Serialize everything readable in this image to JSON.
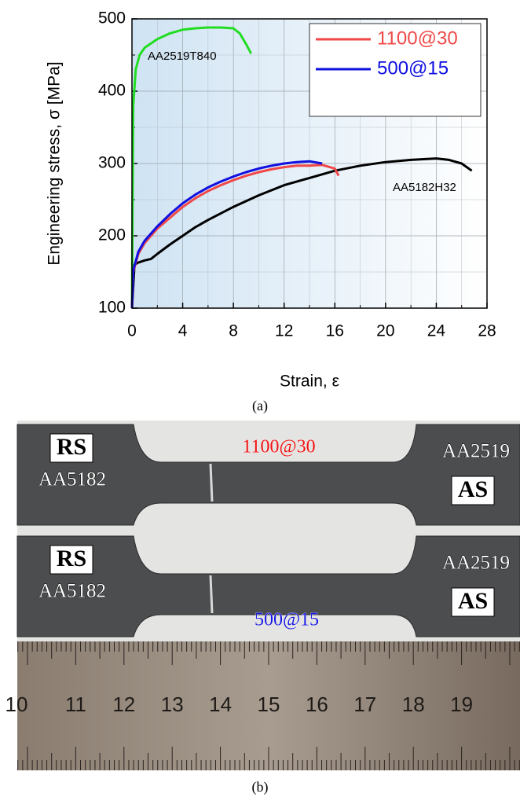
{
  "chart_data": {
    "type": "line",
    "xlabel": "Strain, ε",
    "ylabel": "Engineering stress, σ [MPa]",
    "xlim": [
      0,
      28
    ],
    "xticks": [
      0,
      4,
      8,
      12,
      16,
      20,
      24,
      28
    ],
    "ylim": [
      100,
      500
    ],
    "yticks": [
      100,
      200,
      300,
      400,
      500
    ],
    "grid": true,
    "legend": "upper right",
    "series": [
      {
        "name": "AA2519T840",
        "color": "#22dd22",
        "in_legend": false,
        "x": [
          0,
          0.1,
          0.3,
          0.6,
          1,
          2,
          3,
          4,
          5,
          6,
          7,
          8,
          8.5,
          9,
          9.4
        ],
        "values": [
          100,
          380,
          430,
          450,
          460,
          472,
          480,
          485,
          487,
          488,
          488,
          487,
          480,
          465,
          452
        ]
      },
      {
        "name": "AA5182H32",
        "color": "#000000",
        "in_legend": false,
        "x": [
          0,
          0.2,
          0.5,
          1,
          1.5,
          2,
          3,
          4,
          5,
          6,
          8,
          10,
          12,
          14,
          16,
          18,
          20,
          22,
          24,
          25,
          26,
          26.8
        ],
        "values": [
          100,
          160,
          163,
          166,
          168,
          175,
          188,
          200,
          212,
          222,
          240,
          256,
          270,
          280,
          290,
          297,
          302,
          305,
          307,
          305,
          300,
          290
        ]
      },
      {
        "name": "1100@30",
        "color": "#f04848",
        "in_legend": true,
        "x": [
          0,
          0.1,
          0.5,
          1,
          2,
          3,
          4,
          5,
          6,
          7,
          8,
          9,
          10,
          11,
          12,
          13,
          14,
          15,
          16,
          16.3
        ],
        "values": [
          100,
          150,
          175,
          190,
          210,
          225,
          240,
          252,
          262,
          270,
          277,
          283,
          288,
          292,
          295,
          297,
          297,
          298,
          293,
          283
        ]
      },
      {
        "name": "500@15",
        "color": "#1010e0",
        "in_legend": true,
        "x": [
          0,
          0.1,
          0.5,
          1,
          2,
          3,
          4,
          5,
          6,
          7,
          8,
          9,
          10,
          11,
          12,
          13,
          14,
          15
        ],
        "values": [
          100,
          152,
          178,
          193,
          213,
          230,
          245,
          257,
          267,
          275,
          282,
          288,
          293,
          297,
          300,
          302,
          303,
          300
        ]
      }
    ]
  },
  "captions": [
    "(a)",
    "(b)"
  ],
  "photo": {
    "specimens": [
      {
        "left_box": "RS",
        "left_label": "AA5182",
        "center_label": "1100@30",
        "right_label": "AA2519",
        "right_box": "AS"
      },
      {
        "left_box": "RS",
        "left_label": "AA5182",
        "center_label": "500@15",
        "right_label": "AA2519",
        "right_box": "AS"
      }
    ],
    "ruler": [
      "10",
      "11",
      "12",
      "13",
      "14",
      "15",
      "16",
      "17",
      "18",
      "19"
    ]
  }
}
